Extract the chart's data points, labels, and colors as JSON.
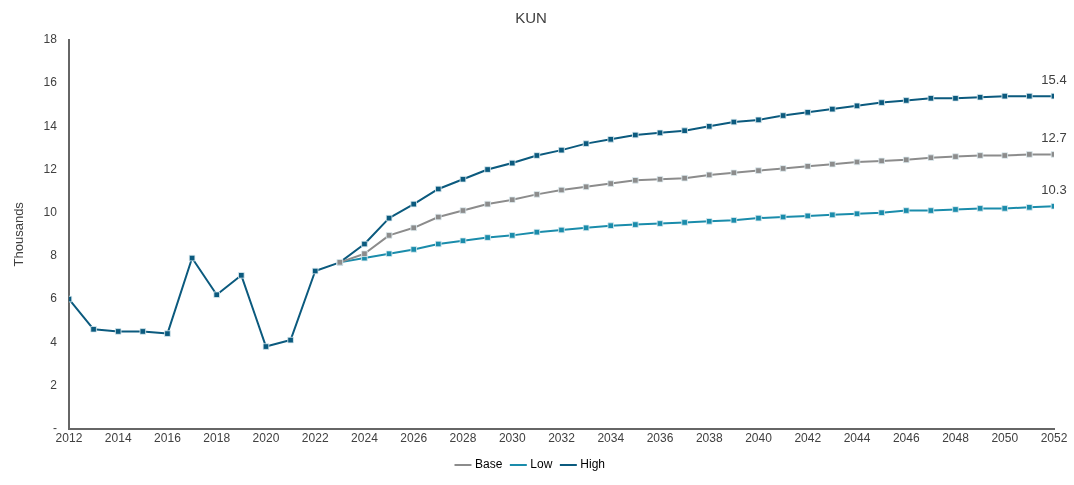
{
  "chart_data": {
    "type": "line",
    "title": "KUN",
    "ylabel": "Thousands",
    "xlim": [
      2012,
      2052
    ],
    "xticks": [
      2012,
      2014,
      2016,
      2018,
      2020,
      2022,
      2024,
      2026,
      2028,
      2030,
      2032,
      2034,
      2036,
      2038,
      2040,
      2042,
      2044,
      2046,
      2048,
      2050,
      2052
    ],
    "ylim": [
      0,
      18
    ],
    "yticks": [
      {
        "value": 0,
        "label": "-"
      },
      2,
      4,
      6,
      8,
      10,
      12,
      14,
      16,
      18
    ],
    "grid": false,
    "legend": "bottom",
    "marker": "square",
    "line_style": "solid",
    "series": [
      {
        "name": "Base",
        "color": "#8c8c8c",
        "x": [
          2023,
          2024,
          2025,
          2026,
          2027,
          2028,
          2029,
          2030,
          2031,
          2032,
          2033,
          2034,
          2035,
          2036,
          2037,
          2038,
          2039,
          2040,
          2041,
          2042,
          2043,
          2044,
          2045,
          2046,
          2047,
          2048,
          2049,
          2050,
          2051,
          2052
        ],
        "values": [
          7.7,
          8.1,
          8.95,
          9.3,
          9.8,
          10.1,
          10.4,
          10.6,
          10.85,
          11.05,
          11.2,
          11.35,
          11.5,
          11.55,
          11.6,
          11.75,
          11.85,
          11.95,
          12.05,
          12.15,
          12.25,
          12.35,
          12.4,
          12.45,
          12.55,
          12.6,
          12.65,
          12.65,
          12.7,
          12.7
        ],
        "value_labels": [
          null,
          null,
          null,
          null,
          null,
          null,
          null,
          null,
          null,
          null,
          null,
          null,
          null,
          null,
          null,
          null,
          null,
          null,
          null,
          null,
          null,
          null,
          null,
          null,
          null,
          null,
          null,
          null,
          null,
          "12.7"
        ]
      },
      {
        "name": "Low",
        "color": "#1a8cab",
        "x": [
          2023,
          2024,
          2025,
          2026,
          2027,
          2028,
          2029,
          2030,
          2031,
          2032,
          2033,
          2034,
          2035,
          2036,
          2037,
          2038,
          2039,
          2040,
          2041,
          2042,
          2043,
          2044,
          2045,
          2046,
          2047,
          2048,
          2049,
          2050,
          2051,
          2052
        ],
        "values": [
          7.7,
          7.9,
          8.1,
          8.3,
          8.55,
          8.7,
          8.85,
          8.95,
          9.1,
          9.2,
          9.3,
          9.4,
          9.45,
          9.5,
          9.55,
          9.6,
          9.65,
          9.75,
          9.8,
          9.85,
          9.9,
          9.95,
          10.0,
          10.1,
          10.1,
          10.15,
          10.2,
          10.2,
          10.25,
          10.3
        ],
        "value_labels": [
          null,
          null,
          null,
          null,
          null,
          null,
          null,
          null,
          null,
          null,
          null,
          null,
          null,
          null,
          null,
          null,
          null,
          null,
          null,
          null,
          null,
          null,
          null,
          null,
          null,
          null,
          null,
          null,
          null,
          "10.3"
        ]
      },
      {
        "name": "High",
        "color": "#0b5a7e",
        "x": [
          2012,
          2013,
          2014,
          2015,
          2016,
          2017,
          2018,
          2019,
          2020,
          2021,
          2022,
          2023,
          2024,
          2025,
          2026,
          2027,
          2028,
          2029,
          2030,
          2031,
          2032,
          2033,
          2034,
          2035,
          2036,
          2037,
          2038,
          2039,
          2040,
          2041,
          2042,
          2043,
          2044,
          2045,
          2046,
          2047,
          2048,
          2049,
          2050,
          2051,
          2052
        ],
        "values": [
          6.0,
          4.6,
          4.5,
          4.5,
          4.4,
          7.9,
          6.2,
          7.1,
          3.8,
          4.1,
          7.3,
          7.7,
          8.55,
          9.75,
          10.4,
          11.1,
          11.55,
          12.0,
          12.3,
          12.65,
          12.9,
          13.2,
          13.4,
          13.6,
          13.7,
          13.8,
          14.0,
          14.2,
          14.3,
          14.5,
          14.65,
          14.8,
          14.95,
          15.1,
          15.2,
          15.3,
          15.3,
          15.35,
          15.4,
          15.4,
          15.4
        ],
        "value_labels": [
          null,
          null,
          null,
          null,
          null,
          null,
          null,
          null,
          null,
          null,
          null,
          null,
          null,
          null,
          null,
          null,
          null,
          null,
          null,
          null,
          null,
          null,
          null,
          null,
          null,
          null,
          null,
          null,
          null,
          null,
          null,
          null,
          null,
          null,
          null,
          null,
          null,
          null,
          null,
          null,
          "15.4"
        ]
      }
    ]
  }
}
